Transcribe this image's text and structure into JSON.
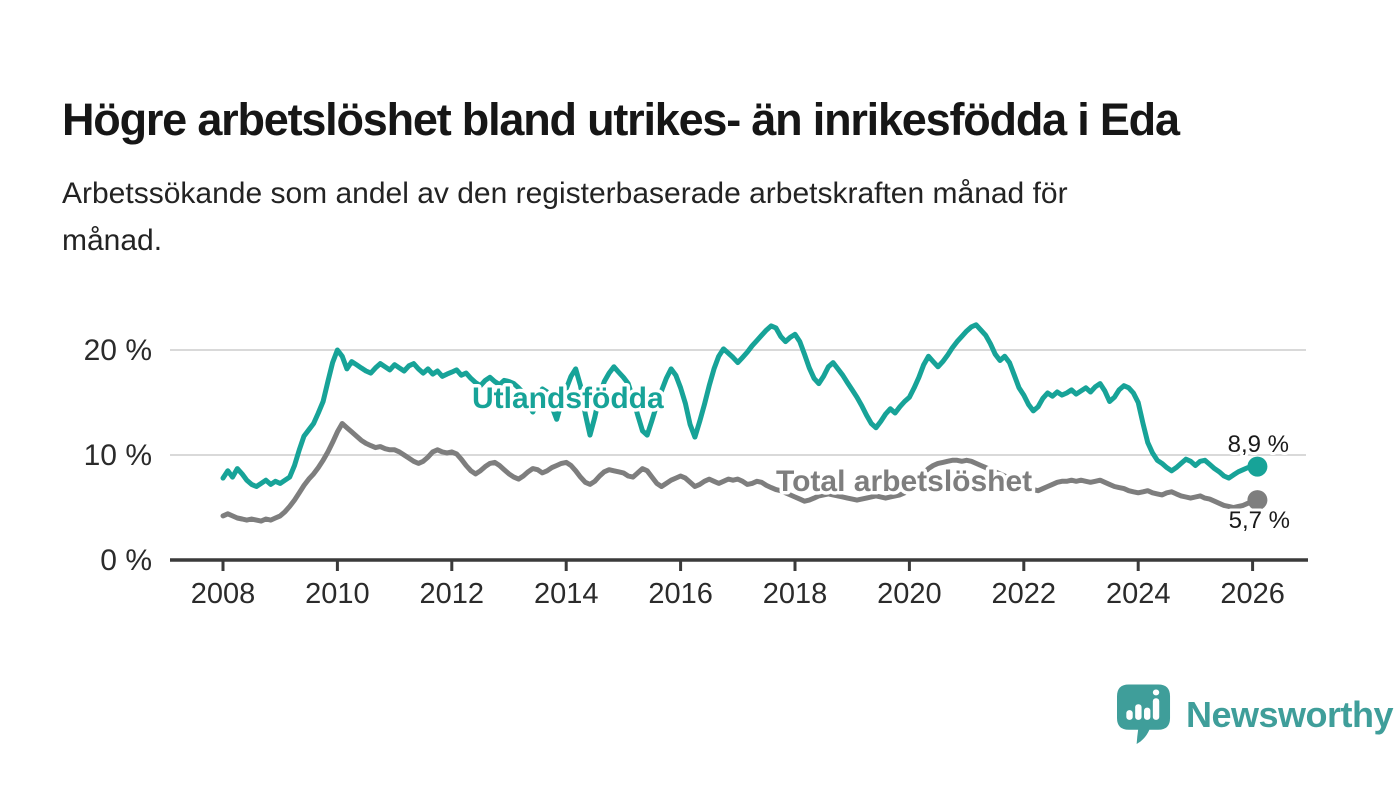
{
  "chart_data": {
    "type": "line",
    "title": "Högre arbetslöshet bland utrikes- än inrikesfödda i Eda",
    "subtitle_lines": [
      "Arbetssökande som andel av den registerbaserade arbetskraften månad för",
      "månad."
    ],
    "x_start": "2008-01",
    "x_step_months": 1,
    "x_ticks": [
      2008,
      2010,
      2012,
      2014,
      2016,
      2018,
      2020,
      2022,
      2024,
      2026
    ],
    "y_ticks": [
      {
        "value": 0,
        "label": "0 %"
      },
      {
        "value": 10,
        "label": "10 %"
      },
      {
        "value": 20,
        "label": "20 %"
      }
    ],
    "ylim": [
      0,
      23.5
    ],
    "grid": "horizontal-only",
    "legend": "inline-labels",
    "series": [
      {
        "name": "Utlandsfödda",
        "color": "#17a398",
        "end_label": "8,9 %",
        "end_value": 8.9,
        "values": [
          7.8,
          8.5,
          7.9,
          8.7,
          8.2,
          7.6,
          7.2,
          7.0,
          7.3,
          7.6,
          7.2,
          7.5,
          7.3,
          7.6,
          7.9,
          9.0,
          10.5,
          11.8,
          12.4,
          13.0,
          14.0,
          15.1,
          17.0,
          18.8,
          20.0,
          19.4,
          18.2,
          18.9,
          18.6,
          18.3,
          18.0,
          17.8,
          18.3,
          18.7,
          18.4,
          18.1,
          18.6,
          18.3,
          18.0,
          18.5,
          18.7,
          18.2,
          17.8,
          18.2,
          17.7,
          18.0,
          17.5,
          17.7,
          17.9,
          18.1,
          17.6,
          17.8,
          17.3,
          16.9,
          16.6,
          17.1,
          17.4,
          17.0,
          16.7,
          17.1,
          17.0,
          16.8,
          16.4,
          15.9,
          15.0,
          14.1,
          15.2,
          16.3,
          16.0,
          14.6,
          13.4,
          15.0,
          16.3,
          17.5,
          18.2,
          16.6,
          13.9,
          11.9,
          13.6,
          15.7,
          17.0,
          17.8,
          18.4,
          17.9,
          17.4,
          16.8,
          15.4,
          13.8,
          12.3,
          11.9,
          13.3,
          14.8,
          16.1,
          17.3,
          18.2,
          17.6,
          16.4,
          14.9,
          12.9,
          11.7,
          13.2,
          14.8,
          16.6,
          18.2,
          19.4,
          20.1,
          19.7,
          19.3,
          18.8,
          19.3,
          19.8,
          20.4,
          20.9,
          21.4,
          21.9,
          22.3,
          22.1,
          21.3,
          20.8,
          21.2,
          21.5,
          20.8,
          19.6,
          18.3,
          17.3,
          16.8,
          17.5,
          18.4,
          18.8,
          18.2,
          17.6,
          16.9,
          16.2,
          15.5,
          14.7,
          13.8,
          13.0,
          12.6,
          13.2,
          13.9,
          14.4,
          14.0,
          14.6,
          15.1,
          15.5,
          16.4,
          17.4,
          18.6,
          19.4,
          18.9,
          18.4,
          18.9,
          19.5,
          20.2,
          20.8,
          21.3,
          21.8,
          22.2,
          22.4,
          21.9,
          21.4,
          20.6,
          19.6,
          19.0,
          19.4,
          18.8,
          17.6,
          16.4,
          15.7,
          14.8,
          14.2,
          14.6,
          15.4,
          15.9,
          15.6,
          16.0,
          15.7,
          15.9,
          16.2,
          15.8,
          16.1,
          16.4,
          16.0,
          16.5,
          16.8,
          16.1,
          15.1,
          15.5,
          16.2,
          16.6,
          16.4,
          15.9,
          15.0,
          13.0,
          11.2,
          10.2,
          9.5,
          9.2,
          8.8,
          8.5,
          8.8,
          9.2,
          9.6,
          9.4,
          9.0,
          9.4,
          9.5,
          9.1,
          8.7,
          8.4,
          8.0,
          7.8,
          8.1,
          8.4,
          8.6,
          8.8,
          8.8,
          8.9
        ]
      },
      {
        "name": "Total arbetslöshet",
        "color": "#7e7e7e",
        "end_label": "5,7 %",
        "end_value": 5.7,
        "values": [
          4.2,
          4.4,
          4.2,
          4.0,
          3.9,
          3.8,
          3.9,
          3.8,
          3.7,
          3.9,
          3.8,
          4.0,
          4.2,
          4.6,
          5.1,
          5.7,
          6.4,
          7.1,
          7.7,
          8.2,
          8.8,
          9.5,
          10.3,
          11.2,
          12.2,
          13.0,
          12.6,
          12.2,
          11.8,
          11.4,
          11.1,
          10.9,
          10.7,
          10.8,
          10.6,
          10.5,
          10.5,
          10.3,
          10.0,
          9.7,
          9.4,
          9.2,
          9.4,
          9.8,
          10.3,
          10.5,
          10.3,
          10.2,
          10.3,
          10.1,
          9.6,
          9.0,
          8.5,
          8.2,
          8.5,
          8.9,
          9.2,
          9.3,
          9.0,
          8.6,
          8.2,
          7.9,
          7.7,
          8.0,
          8.4,
          8.7,
          8.6,
          8.3,
          8.5,
          8.8,
          9.0,
          9.2,
          9.3,
          9.0,
          8.5,
          7.9,
          7.4,
          7.2,
          7.5,
          8.0,
          8.4,
          8.6,
          8.5,
          8.4,
          8.3,
          8.0,
          7.9,
          8.3,
          8.7,
          8.5,
          7.9,
          7.3,
          7.0,
          7.3,
          7.6,
          7.8,
          8.0,
          7.8,
          7.4,
          7.0,
          7.2,
          7.5,
          7.7,
          7.5,
          7.3,
          7.5,
          7.7,
          7.6,
          7.7,
          7.5,
          7.2,
          7.3,
          7.5,
          7.4,
          7.1,
          6.9,
          6.7,
          6.6,
          6.4,
          6.2,
          6.0,
          5.8,
          5.6,
          5.7,
          5.9,
          6.1,
          6.2,
          6.3,
          6.2,
          6.1,
          6.0,
          5.9,
          5.8,
          5.7,
          5.8,
          5.9,
          6.0,
          6.1,
          6.0,
          5.9,
          6.0,
          6.1,
          6.2,
          6.4,
          6.7,
          7.2,
          7.8,
          8.3,
          8.7,
          9.0,
          9.2,
          9.3,
          9.4,
          9.5,
          9.5,
          9.4,
          9.5,
          9.4,
          9.2,
          9.0,
          8.8,
          8.6,
          8.4,
          8.2,
          8.0,
          7.8,
          7.6,
          7.3,
          7.1,
          6.9,
          6.7,
          6.6,
          6.8,
          7.0,
          7.2,
          7.4,
          7.5,
          7.5,
          7.6,
          7.5,
          7.6,
          7.5,
          7.4,
          7.5,
          7.6,
          7.4,
          7.2,
          7.0,
          6.9,
          6.8,
          6.6,
          6.5,
          6.4,
          6.5,
          6.6,
          6.4,
          6.3,
          6.2,
          6.4,
          6.5,
          6.3,
          6.1,
          6.0,
          5.9,
          6.0,
          6.1,
          5.9,
          5.8,
          5.6,
          5.4,
          5.2,
          5.1,
          5.0,
          5.1,
          5.2,
          5.4,
          5.5,
          5.7
        ]
      }
    ]
  },
  "branding": {
    "name": "Newsworthy",
    "accent": "#3f9e9a"
  },
  "style_colors": {
    "grid": "#d9d9d9",
    "axis": "#3a3a3a",
    "tick_text": "#2b2b2b",
    "end_label_text": "#1a1a1a"
  }
}
